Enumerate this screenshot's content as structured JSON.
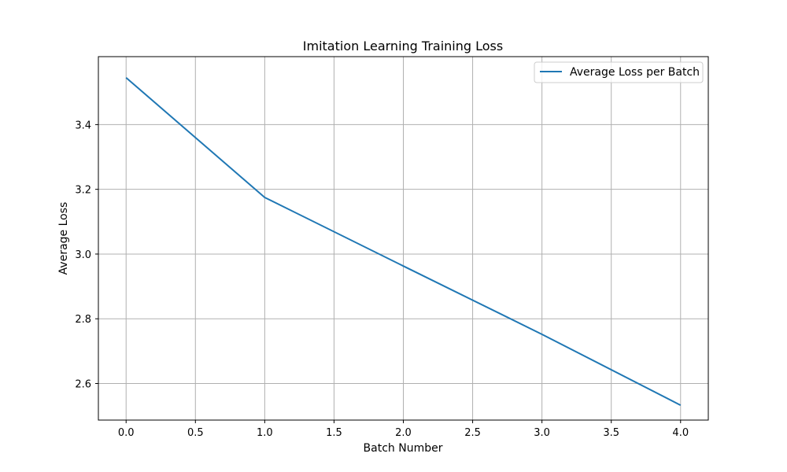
{
  "chart_data": {
    "type": "line",
    "title": "Imitation Learning Training Loss",
    "xlabel": "Batch Number",
    "ylabel": "Average Loss",
    "xlim": [
      -0.2,
      4.2
    ],
    "ylim": [
      2.487,
      3.61
    ],
    "xticks": [
      0.0,
      0.5,
      1.0,
      1.5,
      2.0,
      2.5,
      3.0,
      3.5,
      4.0
    ],
    "xtick_labels": [
      "0.0",
      "0.5",
      "1.0",
      "1.5",
      "2.0",
      "2.5",
      "3.0",
      "3.5",
      "4.0"
    ],
    "yticks": [
      2.6,
      2.8,
      3.0,
      3.2,
      3.4
    ],
    "ytick_labels": [
      "2.6",
      "2.8",
      "3.0",
      "3.2",
      "3.4"
    ],
    "grid": true,
    "legend_position": "top-right",
    "series": [
      {
        "name": "Average Loss per Batch",
        "color": "#1f77b4",
        "x": [
          0,
          1,
          2,
          3,
          4
        ],
        "y": [
          3.545,
          3.175,
          2.963,
          2.752,
          2.533
        ]
      }
    ]
  }
}
